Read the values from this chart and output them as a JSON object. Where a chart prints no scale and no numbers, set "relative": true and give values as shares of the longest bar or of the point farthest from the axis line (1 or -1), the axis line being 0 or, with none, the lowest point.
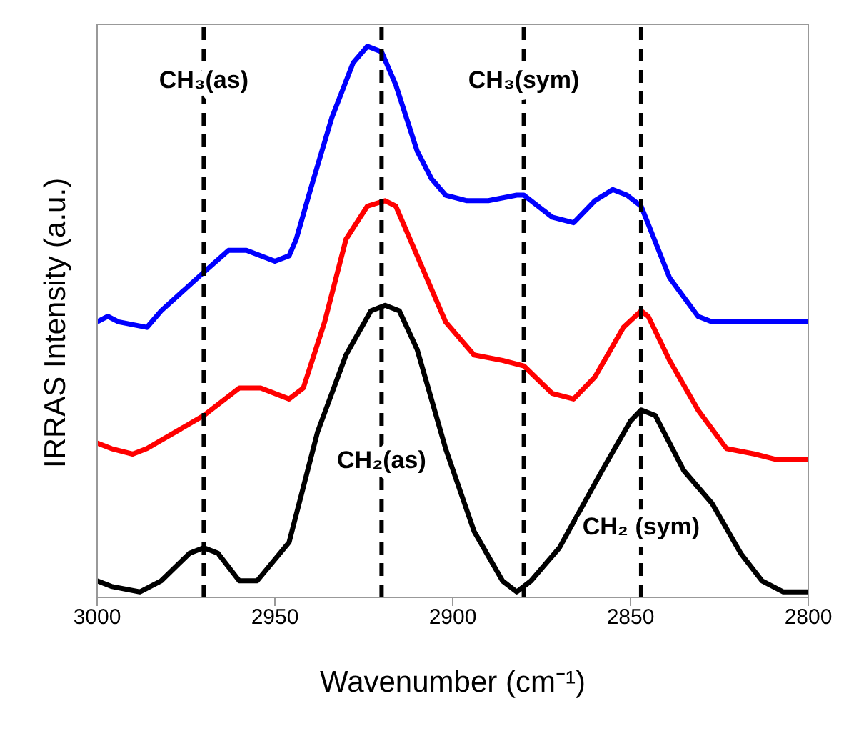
{
  "chart_data": {
    "type": "line",
    "relative": true,
    "xlabel": "Wavenumber (cm⁻¹)",
    "ylabel": "IRRAS Intensity (a.u.)",
    "xlim": [
      3000,
      2800
    ],
    "xticks": [
      3000,
      2950,
      2900,
      2850,
      2800
    ],
    "line_style": "solid",
    "marker": "none",
    "series": [
      {
        "color": "#0000ff",
        "x": [
          3000,
          2997,
          2994,
          2986,
          2982,
          2970,
          2963,
          2958,
          2950,
          2946,
          2944,
          2940,
          2934,
          2928,
          2924,
          2920,
          2916,
          2910,
          2906,
          2902,
          2896,
          2890,
          2882,
          2880,
          2872,
          2866,
          2860,
          2855,
          2851,
          2847,
          2839,
          2831,
          2827,
          2811,
          2800
        ],
        "values": [
          0.5,
          0.51,
          0.5,
          0.49,
          0.52,
          0.59,
          0.63,
          0.63,
          0.61,
          0.62,
          0.65,
          0.74,
          0.87,
          0.97,
          1,
          0.99,
          0.93,
          0.81,
          0.76,
          0.73,
          0.72,
          0.72,
          0.73,
          0.73,
          0.69,
          0.68,
          0.72,
          0.74,
          0.73,
          0.71,
          0.58,
          0.51,
          0.5,
          0.5,
          0.5
        ]
      },
      {
        "color": "#ff0000",
        "x": [
          3000,
          2996,
          2990,
          2986,
          2970,
          2960,
          2954,
          2946,
          2942,
          2936,
          2930,
          2924,
          2919,
          2916,
          2910,
          2902,
          2894,
          2886,
          2880,
          2872,
          2866,
          2860,
          2852,
          2847,
          2845,
          2839,
          2831,
          2823,
          2815,
          2809,
          2800
        ],
        "values": [
          0.28,
          0.27,
          0.26,
          0.27,
          0.33,
          0.38,
          0.38,
          0.36,
          0.38,
          0.5,
          0.65,
          0.71,
          0.72,
          0.71,
          0.62,
          0.5,
          0.44,
          0.43,
          0.42,
          0.37,
          0.36,
          0.4,
          0.49,
          0.52,
          0.51,
          0.43,
          0.34,
          0.27,
          0.26,
          0.25,
          0.25
        ]
      },
      {
        "color": "#000000",
        "x": [
          3000,
          2996,
          2988,
          2982,
          2974,
          2970,
          2966,
          2960,
          2955,
          2946,
          2938,
          2930,
          2923,
          2919,
          2915,
          2910,
          2902,
          2894,
          2886,
          2882,
          2878,
          2870,
          2858,
          2850,
          2847,
          2843,
          2835,
          2827,
          2819,
          2813,
          2807,
          2800
        ],
        "values": [
          0.03,
          0.02,
          0.01,
          0.03,
          0.08,
          0.09,
          0.08,
          0.03,
          0.03,
          0.1,
          0.3,
          0.44,
          0.52,
          0.53,
          0.52,
          0.45,
          0.27,
          0.12,
          0.03,
          0.01,
          0.03,
          0.09,
          0.23,
          0.32,
          0.34,
          0.33,
          0.23,
          0.17,
          0.08,
          0.03,
          0.01,
          0.01
        ]
      }
    ],
    "ref_lines": [
      {
        "axis": "x",
        "value": 2970,
        "color": "#000000",
        "line_style": "dashed"
      },
      {
        "axis": "x",
        "value": 2920,
        "color": "#000000",
        "line_style": "dashed"
      },
      {
        "axis": "x",
        "value": 2880,
        "color": "#000000",
        "line_style": "dashed"
      },
      {
        "axis": "x",
        "value": 2847,
        "color": "#000000",
        "line_style": "dashed"
      }
    ],
    "annotations": [
      {
        "text": "CH₃(as)",
        "x": 2970,
        "y": 0.94
      },
      {
        "text": "CH₃(sym)",
        "x": 2880,
        "y": 0.94
      },
      {
        "text": "CH₂(as)",
        "x": 2920,
        "y": 0.25
      },
      {
        "text": "CH₂ (sym)",
        "x": 2847,
        "y": 0.13
      }
    ]
  }
}
